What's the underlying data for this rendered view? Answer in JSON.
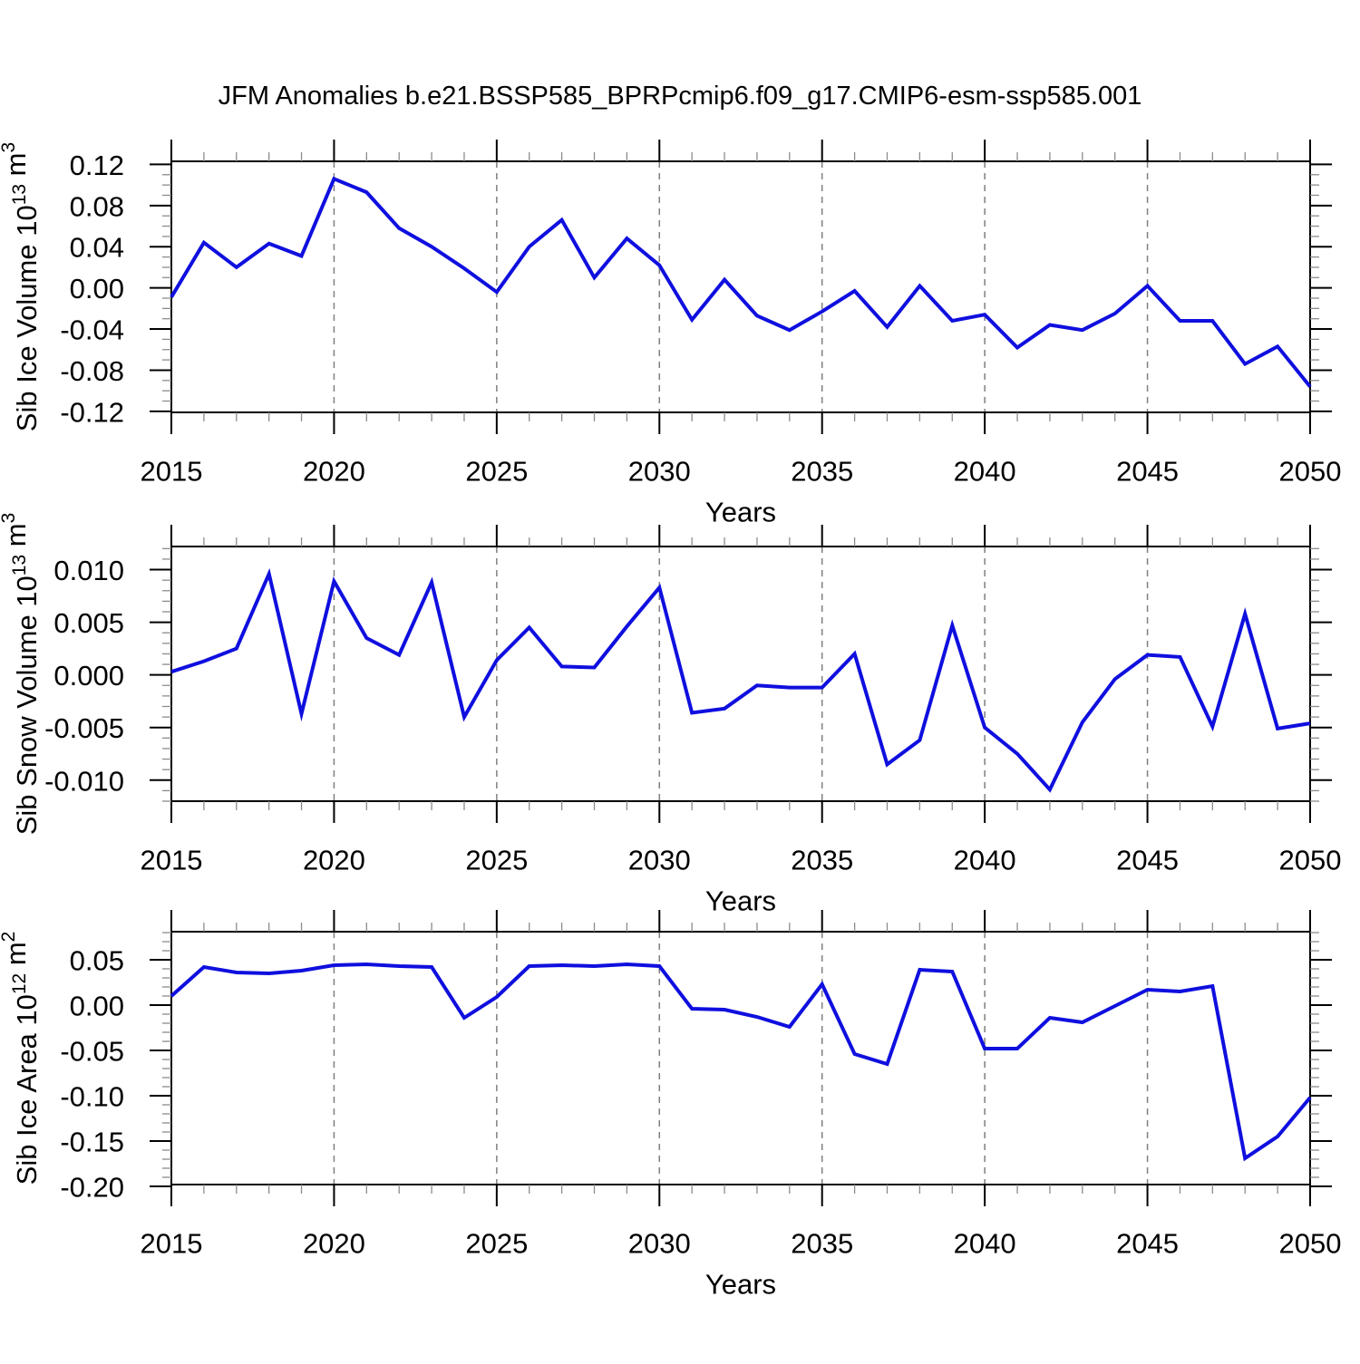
{
  "title": "JFM Anomalies b.e21.BSSP585_BPRPcmip6.f09_g17.CMIP6-esm-ssp585.001",
  "colors": {
    "line": "#0f0fdf",
    "frame": "#000000",
    "major_tick": "#000000",
    "minor_tick": "#8c8c8c",
    "gridline": "#7f7f7f",
    "text": "#000000",
    "background": "#ffffff"
  },
  "years": [
    2015,
    2016,
    2017,
    2018,
    2019,
    2020,
    2021,
    2022,
    2023,
    2024,
    2025,
    2026,
    2027,
    2028,
    2029,
    2030,
    2031,
    2032,
    2033,
    2034,
    2035,
    2036,
    2037,
    2038,
    2039,
    2040,
    2041,
    2042,
    2043,
    2044,
    2045,
    2046,
    2047,
    2048,
    2049,
    2050
  ],
  "x_axis": {
    "label": "Years",
    "min": 2015,
    "max": 2050,
    "major_tick_years": [
      2015,
      2020,
      2025,
      2030,
      2035,
      2040,
      2045,
      2050
    ],
    "minor_tick_step": 1,
    "dashed_gridline_years": [
      2020,
      2025,
      2030,
      2035,
      2040,
      2045
    ]
  },
  "chart_data": [
    {
      "type": "line",
      "id": "sib-ice-volume",
      "ylabel": "Sib Ice Volume 10^13 m^3",
      "ylabel_parts": [
        {
          "t": "Sib Ice Volume 10",
          "sup": false
        },
        {
          "t": "13",
          "sup": true
        },
        {
          "t": " m",
          "sup": false
        },
        {
          "t": "3",
          "sup": true
        }
      ],
      "ylim": [
        -0.121,
        0.123
      ],
      "ytick_major": [
        0.12,
        0.08,
        0.04,
        0.0,
        -0.04,
        -0.08,
        -0.12
      ],
      "ytick_labels": [
        "0.12",
        "0.08",
        "0.04",
        "0.00",
        "-0.04",
        "-0.08",
        "-0.12"
      ],
      "ytick_minor_step": 0.01,
      "values": [
        -0.009,
        0.044,
        0.02,
        0.043,
        0.031,
        0.106,
        0.093,
        0.058,
        0.04,
        0.019,
        -0.004,
        0.04,
        0.066,
        0.01,
        0.048,
        0.022,
        -0.031,
        0.008,
        -0.027,
        -0.041,
        -0.023,
        -0.003,
        -0.038,
        0.002,
        -0.032,
        -0.026,
        -0.058,
        -0.036,
        -0.041,
        -0.025,
        0.002,
        -0.032,
        -0.032,
        -0.074,
        -0.057,
        -0.096
      ]
    },
    {
      "type": "line",
      "id": "sib-snow-volume",
      "ylabel": "Sib Snow Volume 10^13 m^3",
      "ylabel_parts": [
        {
          "t": "Sib Snow Volume 10",
          "sup": false
        },
        {
          "t": "13",
          "sup": true
        },
        {
          "t": " m",
          "sup": false
        },
        {
          "t": "3",
          "sup": true
        }
      ],
      "ylim": [
        -0.012,
        0.0122
      ],
      "ytick_major": [
        0.01,
        0.005,
        0.0,
        -0.005,
        -0.01
      ],
      "ytick_labels": [
        "0.010",
        "0.005",
        "0.000",
        "-0.005",
        "-0.010"
      ],
      "ytick_minor_step": 0.001,
      "values": [
        0.0003,
        0.0013,
        0.0025,
        0.0096,
        -0.0037,
        0.0089,
        0.0035,
        0.0019,
        0.0088,
        -0.004,
        0.0014,
        0.0045,
        0.0008,
        0.0007,
        0.0046,
        0.0083,
        -0.0036,
        -0.0032,
        -0.001,
        -0.0012,
        -0.0012,
        0.002,
        -0.0085,
        -0.0062,
        0.0047,
        -0.005,
        -0.0075,
        -0.0109,
        -0.0045,
        -0.0004,
        0.0019,
        0.0017,
        -0.0049,
        0.0058,
        -0.0051,
        -0.0046
      ]
    },
    {
      "type": "line",
      "id": "sib-ice-area",
      "ylabel": "Sib Ice Area 10^12 m^2",
      "ylabel_parts": [
        {
          "t": "Sib Ice Area 10",
          "sup": false
        },
        {
          "t": "12",
          "sup": true
        },
        {
          "t": " m",
          "sup": false
        },
        {
          "t": "2",
          "sup": true
        }
      ],
      "ylim": [
        -0.198,
        0.081
      ],
      "ytick_major": [
        0.05,
        0.0,
        -0.05,
        -0.1,
        -0.15,
        -0.2
      ],
      "ytick_labels": [
        "0.05",
        "0.00",
        "-0.05",
        "-0.10",
        "-0.15",
        "-0.20"
      ],
      "ytick_minor_step": 0.01,
      "values": [
        0.01,
        0.042,
        0.036,
        0.035,
        0.038,
        0.044,
        0.045,
        0.043,
        0.042,
        -0.014,
        0.009,
        0.043,
        0.044,
        0.043,
        0.045,
        0.043,
        -0.004,
        -0.005,
        -0.013,
        -0.024,
        0.023,
        -0.054,
        -0.065,
        0.039,
        0.037,
        -0.048,
        -0.048,
        -0.014,
        -0.019,
        -0.001,
        0.017,
        0.015,
        0.021,
        -0.169,
        -0.145,
        -0.102
      ]
    }
  ]
}
